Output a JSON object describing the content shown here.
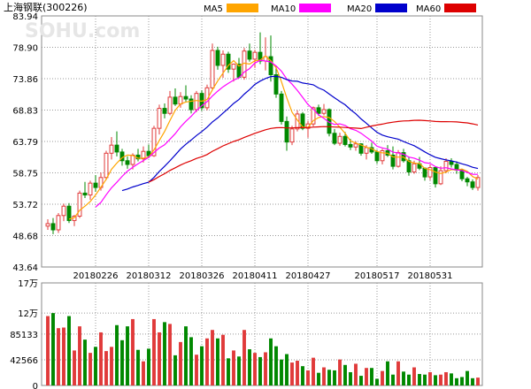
{
  "chart_data": {
    "type": "candlestick",
    "title": "上海钢联(300226)",
    "watermark": "SOHU.com",
    "legend": [
      {
        "name": "MA5",
        "color": "#ffa500"
      },
      {
        "name": "MA10",
        "color": "#ff00ff"
      },
      {
        "name": "MA20",
        "color": "#0000cc"
      },
      {
        "name": "MA60",
        "color": "#dd0000"
      }
    ],
    "colors": {
      "up": "#e03a3a",
      "down": "#008800",
      "grid": "#999999",
      "frame": "#888888"
    },
    "price_axis": {
      "ticks": [
        "83.94",
        "78.90",
        "73.86",
        "68.83",
        "63.79",
        "58.75",
        "53.72",
        "48.68",
        "43.64"
      ],
      "ylim": [
        43.64,
        83.94
      ]
    },
    "date_ticks": [
      "20180226",
      "20180312",
      "20180326",
      "20180411",
      "20180427",
      "20180517",
      "20180531"
    ],
    "volume_axis": {
      "ticks": [
        "17万",
        "12万",
        "85133",
        "42566",
        "0"
      ],
      "ylim": [
        0,
        170000
      ]
    },
    "candles": [
      [
        50.2,
        51.3,
        49.6,
        50.6,
        115000
      ],
      [
        50.6,
        51.5,
        48.9,
        49.6,
        120000
      ],
      [
        49.6,
        52.3,
        49.1,
        51.9,
        95000
      ],
      [
        51.9,
        53.8,
        51.0,
        53.4,
        96000
      ],
      [
        53.4,
        53.9,
        50.7,
        51.1,
        115000
      ],
      [
        51.1,
        52.0,
        50.2,
        51.8,
        58000
      ],
      [
        51.8,
        55.9,
        51.5,
        55.5,
        98000
      ],
      [
        55.5,
        57.3,
        54.7,
        55.2,
        76000
      ],
      [
        55.2,
        57.5,
        54.4,
        57.1,
        54000
      ],
      [
        57.1,
        58.4,
        55.7,
        56.4,
        64000
      ],
      [
        56.4,
        58.8,
        55.9,
        58.0,
        88000
      ],
      [
        58.0,
        62.3,
        57.6,
        61.9,
        57000
      ],
      [
        61.9,
        64.5,
        60.9,
        63.2,
        64000
      ],
      [
        63.2,
        65.4,
        61.4,
        62.1,
        100000
      ],
      [
        62.1,
        62.6,
        59.9,
        60.7,
        75000
      ],
      [
        60.7,
        61.4,
        59.4,
        60.1,
        98000
      ],
      [
        60.1,
        61.9,
        59.3,
        61.6,
        110000
      ],
      [
        61.6,
        62.6,
        60.6,
        61.0,
        59000
      ],
      [
        61.0,
        63.0,
        60.4,
        62.2,
        40000
      ],
      [
        62.2,
        63.3,
        61.1,
        61.5,
        61000
      ],
      [
        61.5,
        66.3,
        61.3,
        65.9,
        110000
      ],
      [
        65.9,
        69.7,
        64.9,
        69.1,
        88000
      ],
      [
        69.1,
        69.9,
        67.5,
        68.3,
        105000
      ],
      [
        68.3,
        71.9,
        68.0,
        70.9,
        102000
      ],
      [
        70.9,
        72.3,
        69.5,
        69.8,
        50000
      ],
      [
        69.8,
        71.7,
        69.2,
        71.0,
        72000
      ],
      [
        71.0,
        72.8,
        70.2,
        70.6,
        98000
      ],
      [
        70.6,
        71.2,
        68.3,
        68.9,
        80000
      ],
      [
        68.9,
        71.9,
        68.5,
        71.5,
        51000
      ],
      [
        71.5,
        72.0,
        68.7,
        69.2,
        65000
      ],
      [
        69.2,
        72.9,
        68.8,
        72.4,
        78000
      ],
      [
        72.4,
        79.5,
        72.0,
        78.4,
        92000
      ],
      [
        78.4,
        79.0,
        75.3,
        76.0,
        78000
      ],
      [
        76.0,
        78.4,
        74.0,
        77.8,
        84000
      ],
      [
        77.8,
        78.2,
        74.8,
        75.4,
        45000
      ],
      [
        75.4,
        76.3,
        73.4,
        76.2,
        58000
      ],
      [
        76.2,
        77.2,
        73.9,
        74.1,
        48000
      ],
      [
        74.1,
        78.8,
        73.7,
        78.3,
        92000
      ],
      [
        78.3,
        79.5,
        76.6,
        77.0,
        60000
      ],
      [
        77.0,
        78.5,
        75.6,
        78.1,
        54000
      ],
      [
        78.1,
        81.3,
        76.2,
        76.7,
        47000
      ],
      [
        76.7,
        80.5,
        75.2,
        77.4,
        55000
      ],
      [
        77.4,
        80.8,
        73.4,
        74.5,
        78000
      ],
      [
        74.5,
        75.9,
        70.8,
        71.4,
        65000
      ],
      [
        71.4,
        71.9,
        66.5,
        67.0,
        43000
      ],
      [
        67.0,
        67.8,
        62.3,
        63.7,
        52000
      ],
      [
        63.7,
        66.3,
        63.2,
        65.8,
        38000
      ],
      [
        65.8,
        68.8,
        65.4,
        68.2,
        41000
      ],
      [
        68.2,
        68.5,
        65.6,
        65.9,
        32000
      ],
      [
        65.9,
        67.1,
        64.4,
        66.6,
        25000
      ],
      [
        66.6,
        69.4,
        66.2,
        69.2,
        46000
      ],
      [
        69.2,
        69.7,
        67.9,
        68.3,
        21000
      ],
      [
        68.3,
        69.8,
        68.0,
        68.9,
        30000
      ],
      [
        68.9,
        69.1,
        64.6,
        65.1,
        26000
      ],
      [
        65.1,
        65.8,
        63.2,
        63.5,
        25000
      ],
      [
        63.5,
        65.2,
        63.1,
        64.6,
        43000
      ],
      [
        64.6,
        65.3,
        63.0,
        63.3,
        34000
      ],
      [
        63.3,
        64.2,
        62.4,
        62.9,
        22000
      ],
      [
        62.9,
        63.8,
        62.3,
        63.4,
        36000
      ],
      [
        63.4,
        63.5,
        61.5,
        61.9,
        16000
      ],
      [
        61.9,
        63.2,
        60.9,
        62.8,
        29000
      ],
      [
        62.8,
        63.6,
        61.8,
        62.1,
        29000
      ],
      [
        62.1,
        62.4,
        60.2,
        60.7,
        11000
      ],
      [
        60.7,
        62.6,
        60.1,
        62.3,
        24000
      ],
      [
        62.3,
        63.2,
        61.3,
        61.6,
        40000
      ],
      [
        61.6,
        63.0,
        59.3,
        59.8,
        18000
      ],
      [
        59.8,
        62.4,
        59.6,
        62.0,
        40000
      ],
      [
        62.0,
        62.6,
        60.4,
        60.7,
        23000
      ],
      [
        60.7,
        61.3,
        58.3,
        58.9,
        18000
      ],
      [
        58.9,
        60.7,
        58.6,
        60.2,
        30000
      ],
      [
        60.2,
        61.3,
        59.2,
        59.5,
        19000
      ],
      [
        59.5,
        59.6,
        57.5,
        58.1,
        18000
      ],
      [
        58.1,
        60.1,
        57.6,
        59.6,
        22000
      ],
      [
        59.6,
        59.8,
        56.4,
        57.0,
        17000
      ],
      [
        57.0,
        59.8,
        56.8,
        59.1,
        18000
      ],
      [
        59.1,
        61.1,
        58.7,
        60.6,
        22000
      ],
      [
        60.6,
        61.1,
        59.6,
        60.1,
        20000
      ],
      [
        60.1,
        60.6,
        58.6,
        59.2,
        12000
      ],
      [
        59.2,
        59.4,
        57.4,
        57.8,
        14000
      ],
      [
        57.8,
        58.1,
        56.6,
        57.3,
        24000
      ],
      [
        57.3,
        57.7,
        56.0,
        56.4,
        12000
      ],
      [
        56.4,
        58.4,
        55.9,
        58.0,
        13000
      ]
    ]
  }
}
